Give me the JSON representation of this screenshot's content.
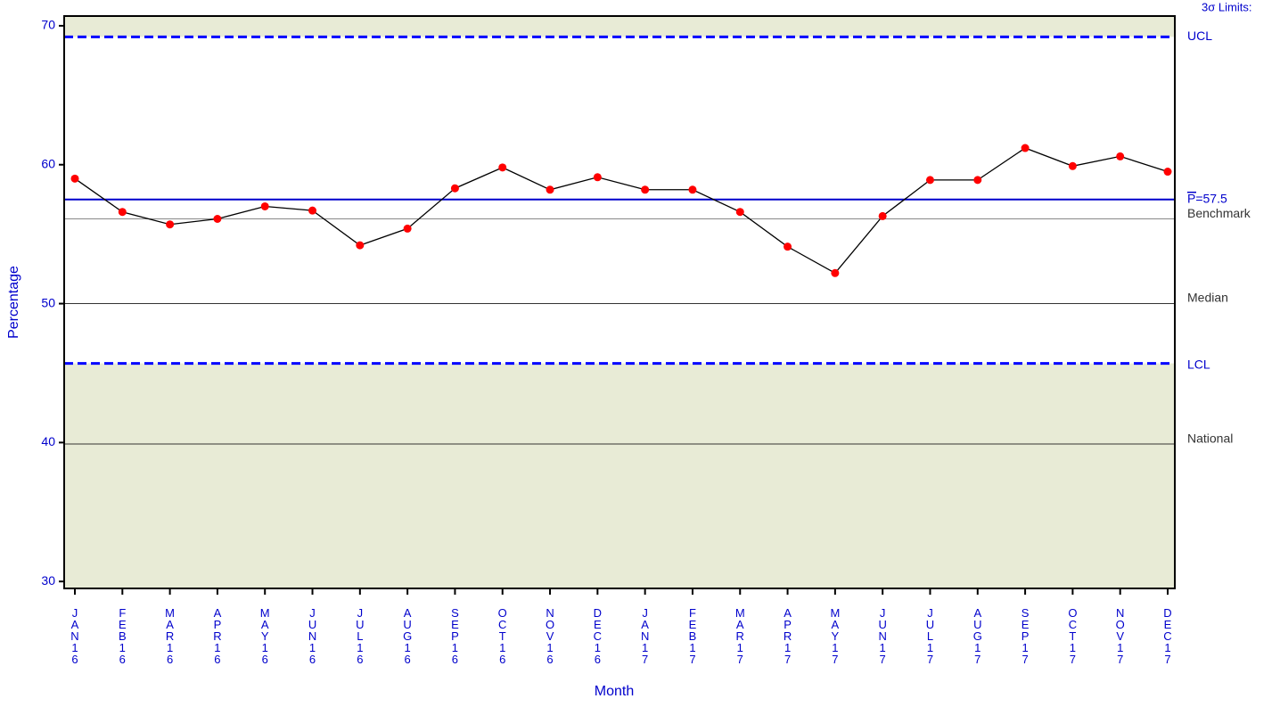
{
  "chart_data": {
    "type": "line",
    "x_label": "Month",
    "y_label": "Percentage",
    "limits_title": "3σ Limits:",
    "categories": [
      "JAN16",
      "FEB16",
      "MAR16",
      "APR16",
      "MAY16",
      "JUN16",
      "JUL16",
      "AUG16",
      "SEP16",
      "OCT16",
      "NOV16",
      "DEC16",
      "JAN17",
      "FEB17",
      "MAR17",
      "APR17",
      "MAY17",
      "JUN17",
      "JUL17",
      "AUG17",
      "SEP17",
      "OCT17",
      "NOV17",
      "DEC17"
    ],
    "series": [
      {
        "name": "Percentage",
        "color": "#000000",
        "marker_color": "#ff0000",
        "values": [
          59.0,
          56.6,
          55.7,
          56.1,
          57.0,
          56.7,
          54.2,
          55.4,
          58.3,
          59.8,
          58.2,
          59.1,
          58.2,
          58.2,
          56.6,
          54.1,
          52.2,
          56.3,
          58.9,
          58.9,
          61.2,
          59.9,
          60.6,
          59.5
        ]
      }
    ],
    "reference_lines": [
      {
        "label": "UCL",
        "value": 69.2,
        "color": "#0000ff",
        "dashed": true,
        "width": 3
      },
      {
        "label": "P=57.5",
        "value": 57.5,
        "color": "#0000cc",
        "dashed": false,
        "width": 2
      },
      {
        "label": "Benchmark",
        "value": 56.1,
        "color": "#888888",
        "dashed": false,
        "width": 1
      },
      {
        "label": "Median",
        "value": 50.0,
        "color": "#333333",
        "dashed": false,
        "width": 1
      },
      {
        "label": "LCL",
        "value": 45.7,
        "color": "#0000ff",
        "dashed": true,
        "width": 3
      },
      {
        "label": "National",
        "value": 39.9,
        "color": "#333333",
        "dashed": false,
        "width": 1
      }
    ],
    "shade_color": "#e8ebd6",
    "ylim": [
      29.5,
      70.7
    ],
    "yticks": [
      30,
      40,
      50,
      60,
      70
    ]
  }
}
